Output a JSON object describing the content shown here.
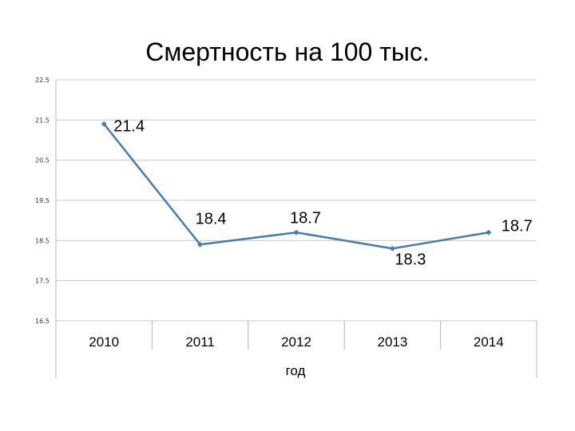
{
  "chart_data": {
    "type": "line",
    "title": "Смертность на 100 тыс.",
    "xlabel": "год",
    "ylabel": "",
    "categories": [
      "2010",
      "2011",
      "2012",
      "2013",
      "2014"
    ],
    "values": [
      21.4,
      18.4,
      18.7,
      18.3,
      18.7
    ],
    "data_labels": [
      "21.4",
      "18.4",
      "18.7",
      "18.3",
      "18.7"
    ],
    "yticks": [
      16.5,
      17.5,
      18.5,
      19.5,
      20.5,
      21.5,
      22.5
    ],
    "ytick_labels": [
      "16.5",
      "17.5",
      "18.5",
      "19.5",
      "20.5",
      "21.5",
      "22.5"
    ],
    "ylim": [
      16.5,
      22.5
    ],
    "grid": true,
    "legend": "none",
    "line_color": "#4a7ab0"
  }
}
